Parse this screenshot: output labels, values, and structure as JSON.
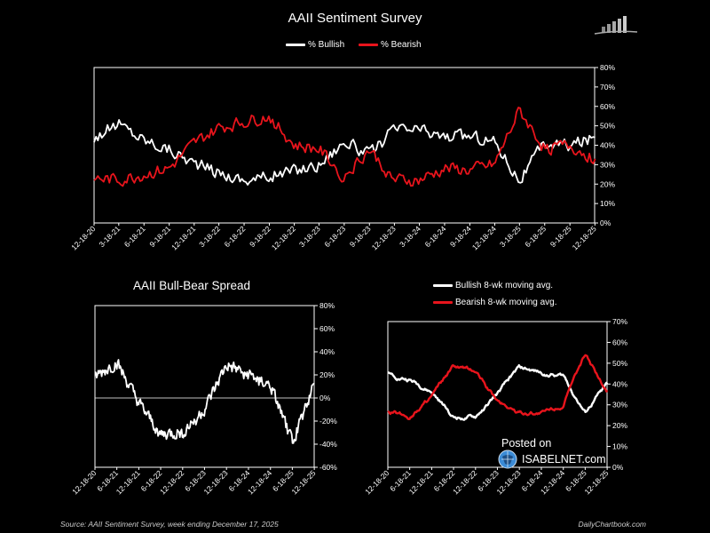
{
  "header": {
    "title": "AAII Sentiment Survey"
  },
  "footer": {
    "source": "Source: AAII Sentiment Survey, week ending December 17, 2025",
    "credit": "DailyChartbook.com",
    "posted_on": "Posted on",
    "watermark": "ISABELNET.com"
  },
  "colors": {
    "bullish": "#ffffff",
    "bearish": "#e8141c",
    "background": "#000000",
    "axis": "#ffffff"
  },
  "icons": {
    "brand_logo": "bar-chart-logo-icon",
    "watermark_logo": "isabelnet-globe-icon"
  },
  "chart_data": [
    {
      "id": "main",
      "type": "line",
      "title": "AAII Sentiment Survey",
      "legend_position": "top-center",
      "y_axis_side": "right",
      "ylim": [
        0,
        80
      ],
      "yticks": [
        "0%",
        "10%",
        "20%",
        "30%",
        "40%",
        "50%",
        "60%",
        "70%",
        "80%"
      ],
      "xticks": [
        "12-18-20",
        "3-18-21",
        "6-18-21",
        "9-18-21",
        "12-18-21",
        "3-18-22",
        "6-18-22",
        "9-18-22",
        "12-18-22",
        "3-18-23",
        "6-18-23",
        "9-18-23",
        "12-18-23",
        "3-18-24",
        "6-18-24",
        "9-18-24",
        "12-18-24",
        "3-18-25",
        "6-18-25",
        "9-18-25",
        "12-18-25"
      ],
      "x_range": [
        "12-18-20",
        "12-17-25"
      ],
      "series": [
        {
          "name": "% Bullish",
          "sample_dates": [
            "12-18-20",
            "3-18-21",
            "6-18-21",
            "9-18-21",
            "12-18-21",
            "3-18-22",
            "6-18-22",
            "9-18-22",
            "12-18-22",
            "3-18-23",
            "6-18-23",
            "9-18-23",
            "12-18-23",
            "3-18-24",
            "6-18-24",
            "9-18-24",
            "12-18-24",
            "3-18-25",
            "6-18-25",
            "9-18-25",
            "12-17-25"
          ],
          "values": [
            44,
            51,
            43,
            38,
            31,
            26,
            22,
            24,
            27,
            30,
            42,
            35,
            48,
            48,
            44,
            45,
            42,
            22,
            41,
            40,
            44
          ]
        },
        {
          "name": "% Bearish",
          "sample_dates": [
            "12-18-20",
            "3-18-21",
            "6-18-21",
            "9-18-21",
            "12-18-21",
            "3-18-22",
            "6-18-22",
            "9-18-22",
            "12-18-22",
            "3-18-23",
            "6-18-23",
            "9-18-23",
            "12-18-23",
            "3-18-24",
            "6-18-24",
            "9-18-24",
            "12-18-24",
            "3-18-25",
            "6-18-25",
            "9-18-25",
            "12-17-25"
          ],
          "values": [
            23,
            22,
            25,
            28,
            41,
            49,
            52,
            55,
            40,
            38,
            24,
            38,
            22,
            22,
            28,
            27,
            30,
            58,
            38,
            40,
            33
          ]
        }
      ]
    },
    {
      "id": "spread",
      "type": "line",
      "title": "AAII Bull-Bear Spread",
      "y_axis_side": "right",
      "ylim": [
        -60,
        80
      ],
      "yticks": [
        "-60%",
        "-40%",
        "-20%",
        "0%",
        "20%",
        "40%",
        "60%",
        "80%"
      ],
      "xticks": [
        "12-18-20",
        "6-18-21",
        "12-18-21",
        "6-18-22",
        "12-18-22",
        "6-18-23",
        "12-18-23",
        "6-18-24",
        "12-18-24",
        "6-18-25",
        "12-18-25"
      ],
      "x_range": [
        "12-18-20",
        "12-17-25"
      ],
      "series": [
        {
          "name": "",
          "sample_dates": [
            "12-18-20",
            "6-18-21",
            "12-18-21",
            "6-18-22",
            "12-18-22",
            "6-18-23",
            "12-18-23",
            "6-18-24",
            "12-18-24",
            "6-18-25",
            "12-17-25"
          ],
          "values": [
            18,
            30,
            -5,
            -32,
            -30,
            -10,
            28,
            20,
            10,
            -38,
            12
          ]
        }
      ]
    },
    {
      "id": "moving_avg",
      "type": "line",
      "legend_position": "top",
      "y_axis_side": "right",
      "ylim": [
        0,
        70
      ],
      "yticks": [
        "0%",
        "10%",
        "20%",
        "30%",
        "40%",
        "50%",
        "60%",
        "70%"
      ],
      "xticks": [
        "12-18-20",
        "6-18-21",
        "12-18-21",
        "6-18-22",
        "12-18-22",
        "6-18-23",
        "12-18-23",
        "6-18-24",
        "12-18-24",
        "6-18-25",
        "12-18-25"
      ],
      "x_range": [
        "12-18-20",
        "12-17-25"
      ],
      "series": [
        {
          "name": "Bullish 8-wk moving avg.",
          "sample_dates": [
            "12-18-20",
            "6-18-21",
            "12-18-21",
            "6-18-22",
            "12-18-22",
            "6-18-23",
            "12-18-23",
            "6-18-24",
            "12-18-24",
            "6-18-25",
            "12-17-25"
          ],
          "values": [
            45,
            42,
            36,
            24,
            24,
            35,
            48,
            45,
            44,
            26,
            40
          ]
        },
        {
          "name": "Bearish 8-wk moving avg.",
          "sample_dates": [
            "12-18-20",
            "6-18-21",
            "12-18-21",
            "6-18-22",
            "12-18-22",
            "6-18-23",
            "12-18-23",
            "6-18-24",
            "12-18-24",
            "6-18-25",
            "12-17-25"
          ],
          "values": [
            27,
            24,
            34,
            48,
            46,
            32,
            26,
            26,
            30,
            54,
            37
          ]
        }
      ]
    }
  ]
}
